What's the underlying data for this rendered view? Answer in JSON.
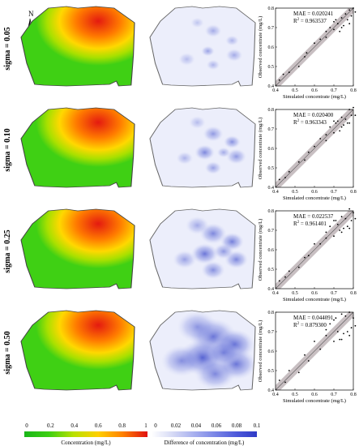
{
  "north_label": "N",
  "rows": [
    {
      "label": "sigma = 0.05",
      "sigma": 0.05,
      "mae_text": "MAE = 0.020241",
      "r2_text": "R",
      "r2_value": " = 0.963537",
      "scatter": [
        [
          0.42,
          0.43
        ],
        [
          0.44,
          0.46
        ],
        [
          0.47,
          0.47
        ],
        [
          0.52,
          0.5
        ],
        [
          0.55,
          0.55
        ],
        [
          0.56,
          0.57
        ],
        [
          0.6,
          0.62
        ],
        [
          0.63,
          0.64
        ],
        [
          0.66,
          0.65
        ],
        [
          0.68,
          0.7
        ],
        [
          0.7,
          0.69
        ],
        [
          0.71,
          0.74
        ],
        [
          0.72,
          0.72
        ],
        [
          0.73,
          0.68
        ],
        [
          0.74,
          0.75
        ],
        [
          0.75,
          0.71
        ],
        [
          0.76,
          0.77
        ],
        [
          0.77,
          0.74
        ],
        [
          0.78,
          0.79
        ],
        [
          0.79,
          0.76
        ],
        [
          0.8,
          0.8
        ],
        [
          0.81,
          0.78
        ],
        [
          0.78,
          0.72
        ],
        [
          0.74,
          0.7
        ],
        [
          0.7,
          0.73
        ],
        [
          0.66,
          0.68
        ]
      ],
      "hotspots": [
        [
          0.6,
          0.3,
          0.05,
          0.4
        ],
        [
          0.78,
          0.42,
          0.04,
          0.35
        ],
        [
          0.55,
          0.55,
          0.04,
          0.45
        ],
        [
          0.8,
          0.6,
          0.05,
          0.4
        ],
        [
          0.6,
          0.72,
          0.04,
          0.35
        ],
        [
          0.35,
          0.65,
          0.05,
          0.3
        ],
        [
          0.45,
          0.2,
          0.04,
          0.25
        ]
      ]
    },
    {
      "label": "sigma = 0.10",
      "sigma": 0.1,
      "mae_text": "MAE = 0.020400",
      "r2_text": "R",
      "r2_value": " = 0.963343",
      "scatter": [
        [
          0.42,
          0.44
        ],
        [
          0.45,
          0.45
        ],
        [
          0.47,
          0.48
        ],
        [
          0.52,
          0.53
        ],
        [
          0.55,
          0.54
        ],
        [
          0.57,
          0.58
        ],
        [
          0.6,
          0.61
        ],
        [
          0.63,
          0.65
        ],
        [
          0.66,
          0.64
        ],
        [
          0.68,
          0.71
        ],
        [
          0.7,
          0.68
        ],
        [
          0.71,
          0.73
        ],
        [
          0.72,
          0.74
        ],
        [
          0.73,
          0.69
        ],
        [
          0.74,
          0.76
        ],
        [
          0.75,
          0.72
        ],
        [
          0.76,
          0.75
        ],
        [
          0.77,
          0.73
        ],
        [
          0.78,
          0.8
        ],
        [
          0.79,
          0.77
        ],
        [
          0.8,
          0.81
        ],
        [
          0.81,
          0.77
        ],
        [
          0.78,
          0.73
        ],
        [
          0.74,
          0.71
        ],
        [
          0.7,
          0.74
        ],
        [
          0.66,
          0.67
        ]
      ],
      "hotspots": [
        [
          0.6,
          0.32,
          0.06,
          0.5
        ],
        [
          0.78,
          0.42,
          0.05,
          0.55
        ],
        [
          0.52,
          0.55,
          0.06,
          0.6
        ],
        [
          0.82,
          0.6,
          0.06,
          0.5
        ],
        [
          0.6,
          0.74,
          0.05,
          0.45
        ],
        [
          0.33,
          0.62,
          0.05,
          0.35
        ],
        [
          0.45,
          0.18,
          0.05,
          0.3
        ],
        [
          0.7,
          0.55,
          0.04,
          0.4
        ]
      ]
    },
    {
      "label": "sigma = 0.25",
      "sigma": 0.25,
      "mae_text": "MAE = 0.022537",
      "r2_text": "R",
      "r2_value": " = 0.961401",
      "scatter": [
        [
          0.42,
          0.44
        ],
        [
          0.45,
          0.46
        ],
        [
          0.47,
          0.49
        ],
        [
          0.52,
          0.51
        ],
        [
          0.55,
          0.56
        ],
        [
          0.57,
          0.57
        ],
        [
          0.6,
          0.63
        ],
        [
          0.63,
          0.63
        ],
        [
          0.66,
          0.66
        ],
        [
          0.68,
          0.72
        ],
        [
          0.7,
          0.67
        ],
        [
          0.71,
          0.75
        ],
        [
          0.72,
          0.73
        ],
        [
          0.73,
          0.7
        ],
        [
          0.74,
          0.77
        ],
        [
          0.75,
          0.71
        ],
        [
          0.76,
          0.76
        ],
        [
          0.77,
          0.72
        ],
        [
          0.78,
          0.81
        ],
        [
          0.79,
          0.75
        ],
        [
          0.8,
          0.79
        ],
        [
          0.81,
          0.76
        ],
        [
          0.78,
          0.71
        ],
        [
          0.74,
          0.69
        ],
        [
          0.7,
          0.75
        ],
        [
          0.66,
          0.69
        ]
      ],
      "hotspots": [
        [
          0.6,
          0.3,
          0.08,
          0.6
        ],
        [
          0.78,
          0.4,
          0.07,
          0.65
        ],
        [
          0.52,
          0.55,
          0.08,
          0.7
        ],
        [
          0.82,
          0.62,
          0.07,
          0.6
        ],
        [
          0.6,
          0.75,
          0.07,
          0.55
        ],
        [
          0.33,
          0.62,
          0.07,
          0.45
        ],
        [
          0.45,
          0.2,
          0.07,
          0.4
        ],
        [
          0.7,
          0.52,
          0.06,
          0.5
        ]
      ]
    },
    {
      "label": "sigma = 0.50",
      "sigma": 0.5,
      "mae_text": "MAE = 0.044091",
      "r2_text": "R",
      "r2_value": " = 0.879300",
      "scatter": [
        [
          0.42,
          0.45
        ],
        [
          0.45,
          0.44
        ],
        [
          0.47,
          0.5
        ],
        [
          0.52,
          0.49
        ],
        [
          0.55,
          0.58
        ],
        [
          0.57,
          0.55
        ],
        [
          0.6,
          0.65
        ],
        [
          0.63,
          0.61
        ],
        [
          0.66,
          0.68
        ],
        [
          0.68,
          0.74
        ],
        [
          0.7,
          0.65
        ],
        [
          0.71,
          0.77
        ],
        [
          0.72,
          0.7
        ],
        [
          0.73,
          0.66
        ],
        [
          0.74,
          0.79
        ],
        [
          0.75,
          0.69
        ],
        [
          0.76,
          0.78
        ],
        [
          0.77,
          0.7
        ],
        [
          0.78,
          0.8
        ],
        [
          0.79,
          0.72
        ],
        [
          0.8,
          0.77
        ],
        [
          0.81,
          0.73
        ],
        [
          0.78,
          0.68
        ],
        [
          0.74,
          0.66
        ],
        [
          0.7,
          0.76
        ],
        [
          0.66,
          0.71
        ]
      ],
      "hotspots": [
        [
          0.6,
          0.32,
          0.14,
          0.7
        ],
        [
          0.8,
          0.42,
          0.12,
          0.75
        ],
        [
          0.5,
          0.58,
          0.14,
          0.8
        ],
        [
          0.82,
          0.66,
          0.12,
          0.7
        ],
        [
          0.62,
          0.78,
          0.12,
          0.6
        ],
        [
          0.3,
          0.62,
          0.12,
          0.55
        ],
        [
          0.45,
          0.2,
          0.12,
          0.5
        ],
        [
          0.7,
          0.52,
          0.1,
          0.6
        ]
      ]
    }
  ],
  "chart_data": {
    "type": "scatter",
    "xlabel": "Simulated concentrate (mg/L)",
    "ylabel": "Observed concentrate (mg/L)",
    "xlim": [
      0.4,
      0.8
    ],
    "ylim": [
      0.4,
      0.8
    ],
    "x_ticks": [
      "0.4",
      "0.5",
      "0.6",
      "0.7",
      "0.8"
    ],
    "y_ticks": [
      "0.4",
      "0.5",
      "0.6",
      "0.7",
      "0.8"
    ]
  },
  "colorbars": {
    "concentration": {
      "title": "Concentration (mg/L)",
      "ticks": [
        "0",
        "0.2",
        "0.4",
        "0.6",
        "0.8",
        "1"
      ],
      "colors": [
        "#19b619",
        "#3ccf12",
        "#b9e100",
        "#ffd000",
        "#ff8000",
        "#e01010"
      ]
    },
    "difference": {
      "title": "Difference of concentration (mg/L)",
      "ticks": [
        "0",
        "0.02",
        "0.04",
        "0.06",
        "0.08",
        "0.1"
      ],
      "colors": [
        "#ffffff",
        "#d6daf5",
        "#a9b1ef",
        "#7b86e6",
        "#4f5bdb",
        "#2f3bc6"
      ]
    }
  }
}
